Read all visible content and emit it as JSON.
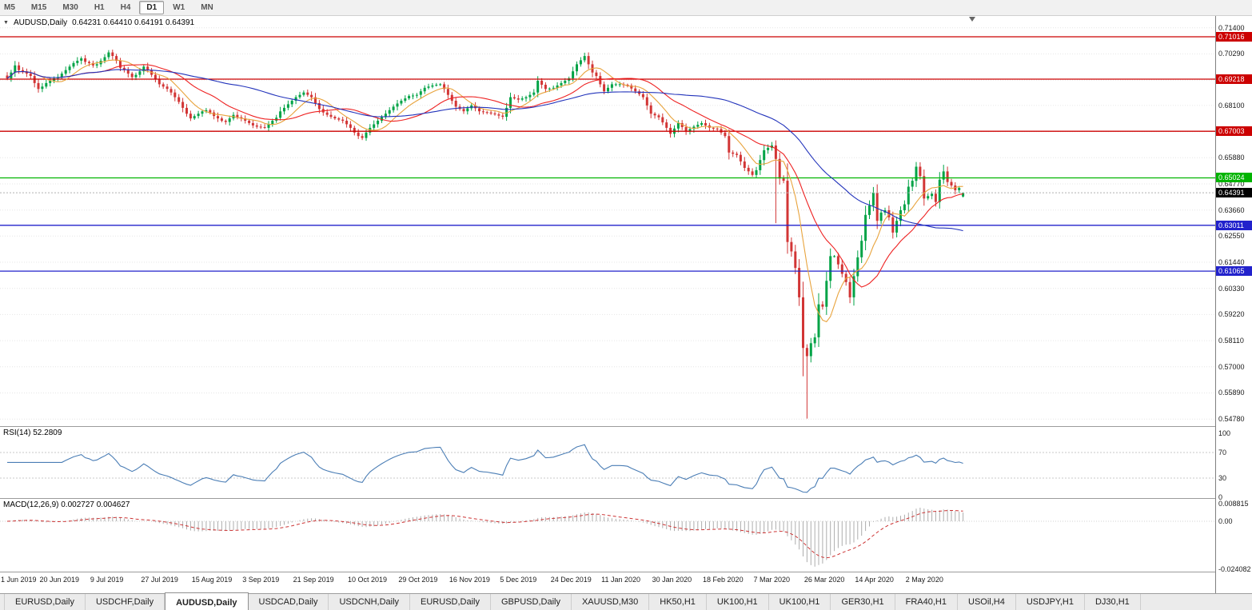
{
  "toolbar": {
    "timeframes": [
      "M5",
      "M15",
      "M30",
      "H1",
      "H4",
      "D1",
      "W1",
      "MN"
    ],
    "active_timeframe": "D1"
  },
  "chart": {
    "header": {
      "collapse_icon": "▼",
      "title": "AUDUSD,Daily",
      "ohlc": "0.64231 0.64410 0.64191 0.64391"
    },
    "rsi_label": "RSI(14) 52.2809",
    "macd_label": "MACD(12,26,9) 0.002727 0.004627"
  },
  "chart_data": {
    "type": "candlestick",
    "symbol": "AUDUSD",
    "period": "Daily",
    "last_candle": {
      "open": 0.64231,
      "high": 0.6441,
      "low": 0.64191,
      "close": 0.64391
    },
    "y_axis": {
      "top": 0.719,
      "bottom": 0.5448,
      "tick_labels": [
        "0.71400",
        "0.70290",
        "0.69180",
        "0.68100",
        "0.66990",
        "0.65880",
        "0.64770",
        "0.63660",
        "0.62550",
        "0.61440",
        "0.60330",
        "0.59220",
        "0.58110",
        "0.57000",
        "0.55890",
        "0.54780"
      ]
    },
    "x_labels": [
      "1 Jun 2019",
      "20 Jun 2019",
      "9 Jul 2019",
      "27 Jul 2019",
      "15 Aug 2019",
      "3 Sep 2019",
      "21 Sep 2019",
      "10 Oct 2019",
      "29 Oct 2019",
      "16 Nov 2019",
      "5 Dec 2019",
      "24 Dec 2019",
      "11 Jan 2020",
      "30 Jan 2020",
      "18 Feb 2020",
      "7 Mar 2020",
      "26 Mar 2020",
      "14 Apr 2020",
      "2 May 2020"
    ],
    "x_label_indices": [
      0,
      13,
      26,
      39,
      52,
      65,
      78,
      92,
      105,
      118,
      131,
      144,
      157,
      170,
      183,
      196,
      209,
      222,
      235
    ],
    "closes": [
      0.6925,
      0.695,
      0.698,
      0.696,
      0.6955,
      0.6945,
      0.6935,
      0.6905,
      0.688,
      0.689,
      0.6905,
      0.6915,
      0.6925,
      0.693,
      0.6945,
      0.696,
      0.6975,
      0.699,
      0.7,
      0.701,
      0.6995,
      0.699,
      0.698,
      0.6985,
      0.7,
      0.7015,
      0.7035,
      0.702,
      0.7,
      0.697,
      0.696,
      0.6945,
      0.693,
      0.694,
      0.6955,
      0.6975,
      0.696,
      0.694,
      0.692,
      0.69,
      0.689,
      0.688,
      0.6865,
      0.6845,
      0.6825,
      0.68,
      0.6775,
      0.6755,
      0.6765,
      0.6775,
      0.6785,
      0.679,
      0.678,
      0.6765,
      0.6755,
      0.6745,
      0.674,
      0.6755,
      0.677,
      0.676,
      0.6755,
      0.6745,
      0.6735,
      0.6725,
      0.672,
      0.6718,
      0.6715,
      0.673,
      0.6745,
      0.6758,
      0.6785,
      0.68,
      0.6815,
      0.683,
      0.6845,
      0.6855,
      0.6865,
      0.6855,
      0.6845,
      0.682,
      0.6795,
      0.678,
      0.677,
      0.6762,
      0.6755,
      0.675,
      0.6745,
      0.673,
      0.6715,
      0.6695,
      0.668,
      0.6672,
      0.6695,
      0.6715,
      0.673,
      0.6745,
      0.676,
      0.6775,
      0.679,
      0.6805,
      0.6818,
      0.683,
      0.684,
      0.685,
      0.6852,
      0.6855,
      0.687,
      0.6885,
      0.689,
      0.6895,
      0.6898,
      0.69,
      0.688,
      0.6855,
      0.683,
      0.6805,
      0.6795,
      0.6785,
      0.6798,
      0.681,
      0.6798,
      0.6785,
      0.6782,
      0.678,
      0.6776,
      0.6772,
      0.6767,
      0.6762,
      0.68,
      0.6845,
      0.684,
      0.6835,
      0.684,
      0.6845,
      0.6855,
      0.6865,
      0.6915,
      0.6898,
      0.688,
      0.6882,
      0.6885,
      0.6895,
      0.6905,
      0.6915,
      0.6925,
      0.6955,
      0.6985,
      0.7002,
      0.702,
      0.6985,
      0.695,
      0.6935,
      0.69,
      0.687,
      0.6885,
      0.69,
      0.69,
      0.69,
      0.6898,
      0.6895,
      0.6882,
      0.687,
      0.6858,
      0.6845,
      0.681,
      0.6775,
      0.6768,
      0.676,
      0.6738,
      0.6715,
      0.669,
      0.6712,
      0.6735,
      0.6718,
      0.67,
      0.671,
      0.672,
      0.6728,
      0.6735,
      0.6725,
      0.6715,
      0.6712,
      0.671,
      0.6695,
      0.668,
      0.661,
      0.6605,
      0.66,
      0.6572,
      0.6545,
      0.653,
      0.6515,
      0.6535,
      0.6578,
      0.662,
      0.663,
      0.664,
      0.6583,
      0.65,
      0.649,
      0.623,
      0.619,
      0.612,
      0.5995,
      0.578,
      0.5745,
      0.58,
      0.5825,
      0.5965,
      0.5955,
      0.6065,
      0.617,
      0.617,
      0.6135,
      0.6095,
      0.606,
      0.5995,
      0.6085,
      0.6165,
      0.6235,
      0.6345,
      0.6385,
      0.644,
      0.632,
      0.6355,
      0.6365,
      0.6335,
      0.627,
      0.632,
      0.6365,
      0.639,
      0.6465,
      0.649,
      0.655,
      0.651,
      0.6415,
      0.6425,
      0.6435,
      0.64,
      0.6495,
      0.653,
      0.6485,
      0.647,
      0.645,
      0.646,
      0.6439
    ],
    "wick_overrides": {
      "26": {
        "high": 0.7045
      },
      "148": {
        "high": 0.7034
      },
      "196": {
        "high": 0.6655
      },
      "197": {
        "low": 0.631
      },
      "200": {
        "low": 0.618
      },
      "204": {
        "low": 0.566
      },
      "205": {
        "low": 0.548
      },
      "233": {
        "high": 0.657
      },
      "240": {
        "high": 0.6558
      }
    },
    "horizontal_lines": [
      {
        "label": "0.71016",
        "color": "#cc0000"
      },
      {
        "label": "0.69218",
        "color": "#cc0000"
      },
      {
        "label": "0.67003",
        "color": "#cc0000"
      },
      {
        "label": "0.65024",
        "color": "#00b400"
      },
      {
        "label": "0.63011",
        "color": "#2222cc"
      },
      {
        "label": "0.61065",
        "color": "#2222cc"
      }
    ],
    "current_price": {
      "label": "0.64391",
      "box_color": "#000000"
    },
    "moving_averages": [
      {
        "period": 8,
        "color": "#e8a33c"
      },
      {
        "period": 20,
        "color": "#ee2222"
      },
      {
        "period": 50,
        "color": "#2233bb"
      }
    ],
    "candle_colors": {
      "up": "#00a346",
      "down": "#d23535"
    },
    "rsi": {
      "period": 14,
      "value": 52.2809,
      "levels": [
        100,
        70,
        30,
        0
      ],
      "line_color": "#4a7db5"
    },
    "macd": {
      "fast": 12,
      "slow": 26,
      "signal": 9,
      "values": [
        0.002727,
        0.004627
      ],
      "axis_labels": [
        "0.008815",
        "0.00",
        "-0.024082"
      ],
      "histogram_color": "#adadad",
      "signal_color": "#cc3333"
    }
  },
  "window_tabs": {
    "active_index": 2,
    "items": [
      "EURUSD,Daily",
      "USDCHF,Daily",
      "AUDUSD,Daily",
      "USDCAD,Daily",
      "USDCNH,Daily",
      "EURUSD,Daily",
      "GBPUSD,Daily",
      "XAUUSD,M30",
      "HK50,H1",
      "UK100,H1",
      "UK100,H1",
      "GER30,H1",
      "FRA40,H1",
      "USOil,H4",
      "USDJPY,H1",
      "DJ30,H1"
    ]
  }
}
